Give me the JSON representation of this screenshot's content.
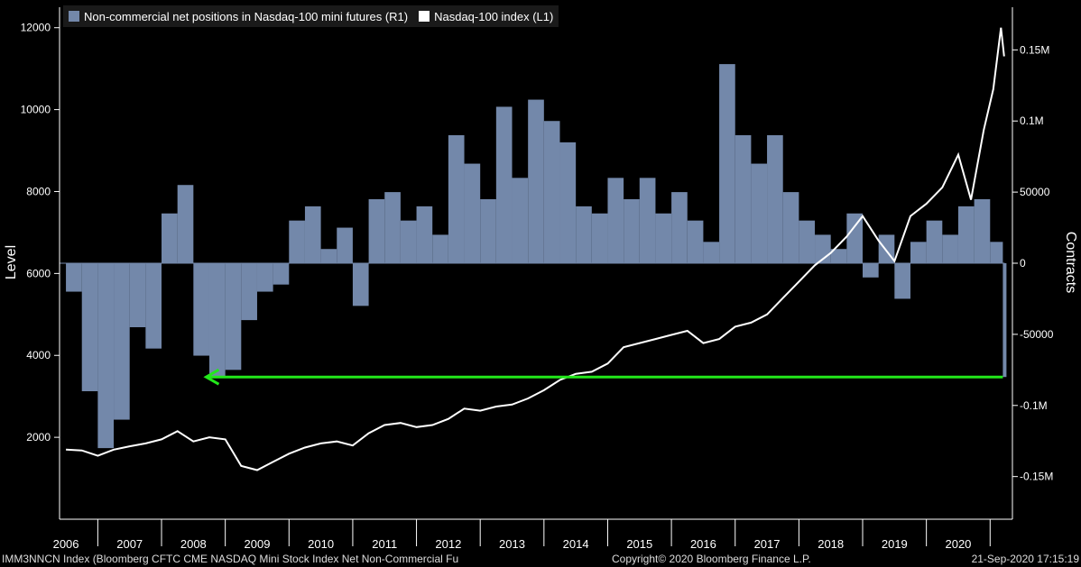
{
  "legend": {
    "bars_label": "Non-commercial net positions in Nasdaq-100 mini futures (R1)",
    "line_label": "Nasdaq-100 index (L1)"
  },
  "axes": {
    "left_title": "Level",
    "right_title": "Contracts",
    "left_ticks": [
      "2000",
      "4000",
      "6000",
      "8000",
      "10000",
      "12000"
    ],
    "right_ticks": [
      "-0.15M",
      "-0.1M",
      "-50000",
      "0",
      "50000",
      "0.1M",
      "0.15M"
    ]
  },
  "footer": {
    "left": "IMM3NNCN Index (Bloomberg CFTC CME NASDAQ Mini Stock Index Net Non-Commercial Fu",
    "center": "Copyright© 2020 Bloomberg Finance L.P.",
    "right": "21-Sep-2020 17:15:19"
  },
  "colors": {
    "bars": "#7388aa",
    "line": "#ffffff",
    "arrow": "#22e81a",
    "axis": "#ffffff"
  },
  "chart_data": {
    "type": "bar",
    "x_categories": [
      "2006",
      "2007",
      "2008",
      "2009",
      "2010",
      "2011",
      "2012",
      "2013",
      "2014",
      "2015",
      "2016",
      "2017",
      "2018",
      "2019",
      "2020"
    ],
    "left_axis": {
      "label": "Level",
      "range": [
        0,
        12500
      ]
    },
    "right_axis": {
      "label": "Contracts",
      "range": [
        -180000,
        180000
      ]
    },
    "series": [
      {
        "name": "Non-commercial net positions in Nasdaq-100 mini futures (R1)",
        "axis": "right",
        "type": "bar",
        "x": [
          2006.0,
          2006.25,
          2006.5,
          2006.75,
          2007.0,
          2007.25,
          2007.5,
          2007.75,
          2008.0,
          2008.25,
          2008.5,
          2008.75,
          2009.0,
          2009.25,
          2009.5,
          2009.75,
          2010.0,
          2010.25,
          2010.5,
          2010.75,
          2011.0,
          2011.25,
          2011.5,
          2011.75,
          2012.0,
          2012.25,
          2012.5,
          2012.75,
          2013.0,
          2013.25,
          2013.5,
          2013.75,
          2014.0,
          2014.25,
          2014.5,
          2014.75,
          2015.0,
          2015.25,
          2015.5,
          2015.75,
          2016.0,
          2016.25,
          2016.5,
          2016.75,
          2017.0,
          2017.25,
          2017.5,
          2017.75,
          2018.0,
          2018.25,
          2018.5,
          2018.75,
          2019.0,
          2019.25,
          2019.5,
          2019.75,
          2020.0,
          2020.25,
          2020.5,
          2020.7
        ],
        "values": [
          -20000,
          -90000,
          -130000,
          -110000,
          -45000,
          -60000,
          35000,
          55000,
          -65000,
          -80000,
          -75000,
          -40000,
          -20000,
          -15000,
          30000,
          40000,
          10000,
          25000,
          -30000,
          45000,
          50000,
          30000,
          40000,
          20000,
          90000,
          70000,
          45000,
          110000,
          60000,
          115000,
          100000,
          85000,
          40000,
          35000,
          60000,
          45000,
          60000,
          35000,
          50000,
          30000,
          15000,
          140000,
          90000,
          70000,
          90000,
          50000,
          30000,
          20000,
          10000,
          35000,
          -10000,
          20000,
          -25000,
          15000,
          30000,
          20000,
          40000,
          45000,
          15000,
          -80000
        ]
      },
      {
        "name": "Nasdaq-100 index (L1)",
        "axis": "left",
        "type": "line",
        "x": [
          2006.0,
          2006.25,
          2006.5,
          2006.75,
          2007.0,
          2007.25,
          2007.5,
          2007.75,
          2008.0,
          2008.25,
          2008.5,
          2008.75,
          2009.0,
          2009.25,
          2009.5,
          2009.75,
          2010.0,
          2010.25,
          2010.5,
          2010.75,
          2011.0,
          2011.25,
          2011.5,
          2011.75,
          2012.0,
          2012.25,
          2012.5,
          2012.75,
          2013.0,
          2013.25,
          2013.5,
          2013.75,
          2014.0,
          2014.25,
          2014.5,
          2014.75,
          2015.0,
          2015.25,
          2015.5,
          2015.75,
          2016.0,
          2016.25,
          2016.5,
          2016.75,
          2017.0,
          2017.25,
          2017.5,
          2017.75,
          2018.0,
          2018.25,
          2018.5,
          2018.75,
          2019.0,
          2019.25,
          2019.5,
          2019.75,
          2020.0,
          2020.2,
          2020.4,
          2020.55,
          2020.67,
          2020.72
        ],
        "values": [
          1700,
          1680,
          1550,
          1700,
          1780,
          1850,
          1950,
          2150,
          1900,
          2000,
          1950,
          1300,
          1200,
          1400,
          1600,
          1750,
          1850,
          1900,
          1800,
          2100,
          2300,
          2350,
          2250,
          2300,
          2450,
          2700,
          2650,
          2750,
          2800,
          2950,
          3150,
          3400,
          3550,
          3600,
          3800,
          4200,
          4300,
          4400,
          4500,
          4600,
          4300,
          4400,
          4700,
          4800,
          5000,
          5400,
          5800,
          6200,
          6500,
          6900,
          7400,
          6800,
          6300,
          7400,
          7700,
          8100,
          8900,
          7800,
          9500,
          10500,
          12000,
          11300
        ]
      }
    ],
    "annotations": [
      {
        "type": "arrow",
        "from_x": 2020.7,
        "to_x": 2008.2,
        "y_right": -80000,
        "color": "#22e81a"
      }
    ]
  }
}
